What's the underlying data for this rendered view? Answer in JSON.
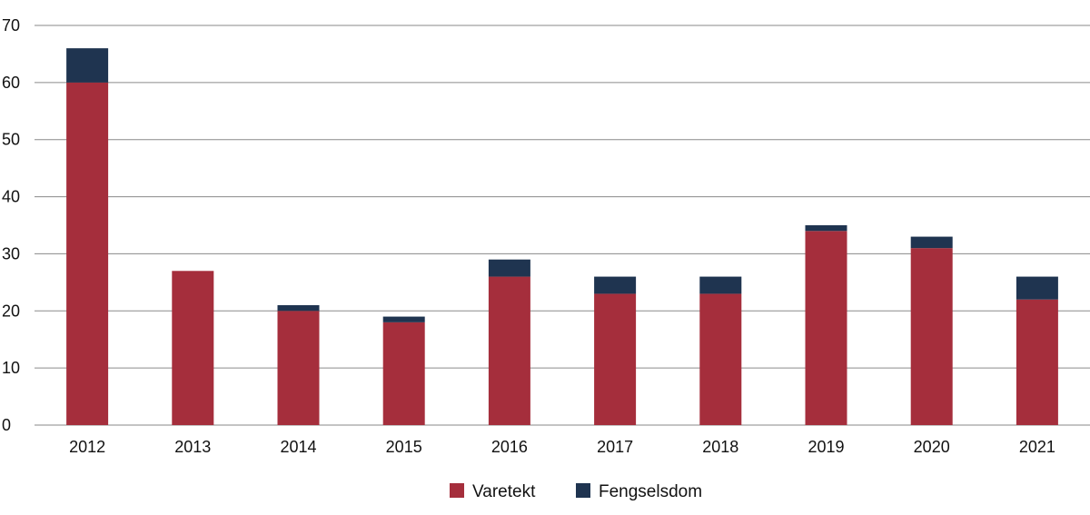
{
  "chart_data": {
    "type": "bar",
    "stacked": true,
    "categories": [
      "2012",
      "2013",
      "2014",
      "2015",
      "2016",
      "2017",
      "2018",
      "2019",
      "2020",
      "2021"
    ],
    "series": [
      {
        "name": "Varetekt",
        "color": "#a52e3c",
        "values": [
          60,
          27,
          20,
          18,
          26,
          23,
          23,
          34,
          31,
          22
        ]
      },
      {
        "name": "Fengselsdom",
        "color": "#1f3450",
        "values": [
          6,
          0,
          1,
          1,
          3,
          3,
          3,
          1,
          2,
          4
        ]
      }
    ],
    "ylim": [
      0,
      70
    ],
    "yticks": [
      "0",
      "10",
      "20",
      "30",
      "40",
      "50",
      "60",
      "70"
    ],
    "grid": true,
    "legend_position": "bottom-center",
    "title": "",
    "xlabel": "",
    "ylabel": ""
  }
}
